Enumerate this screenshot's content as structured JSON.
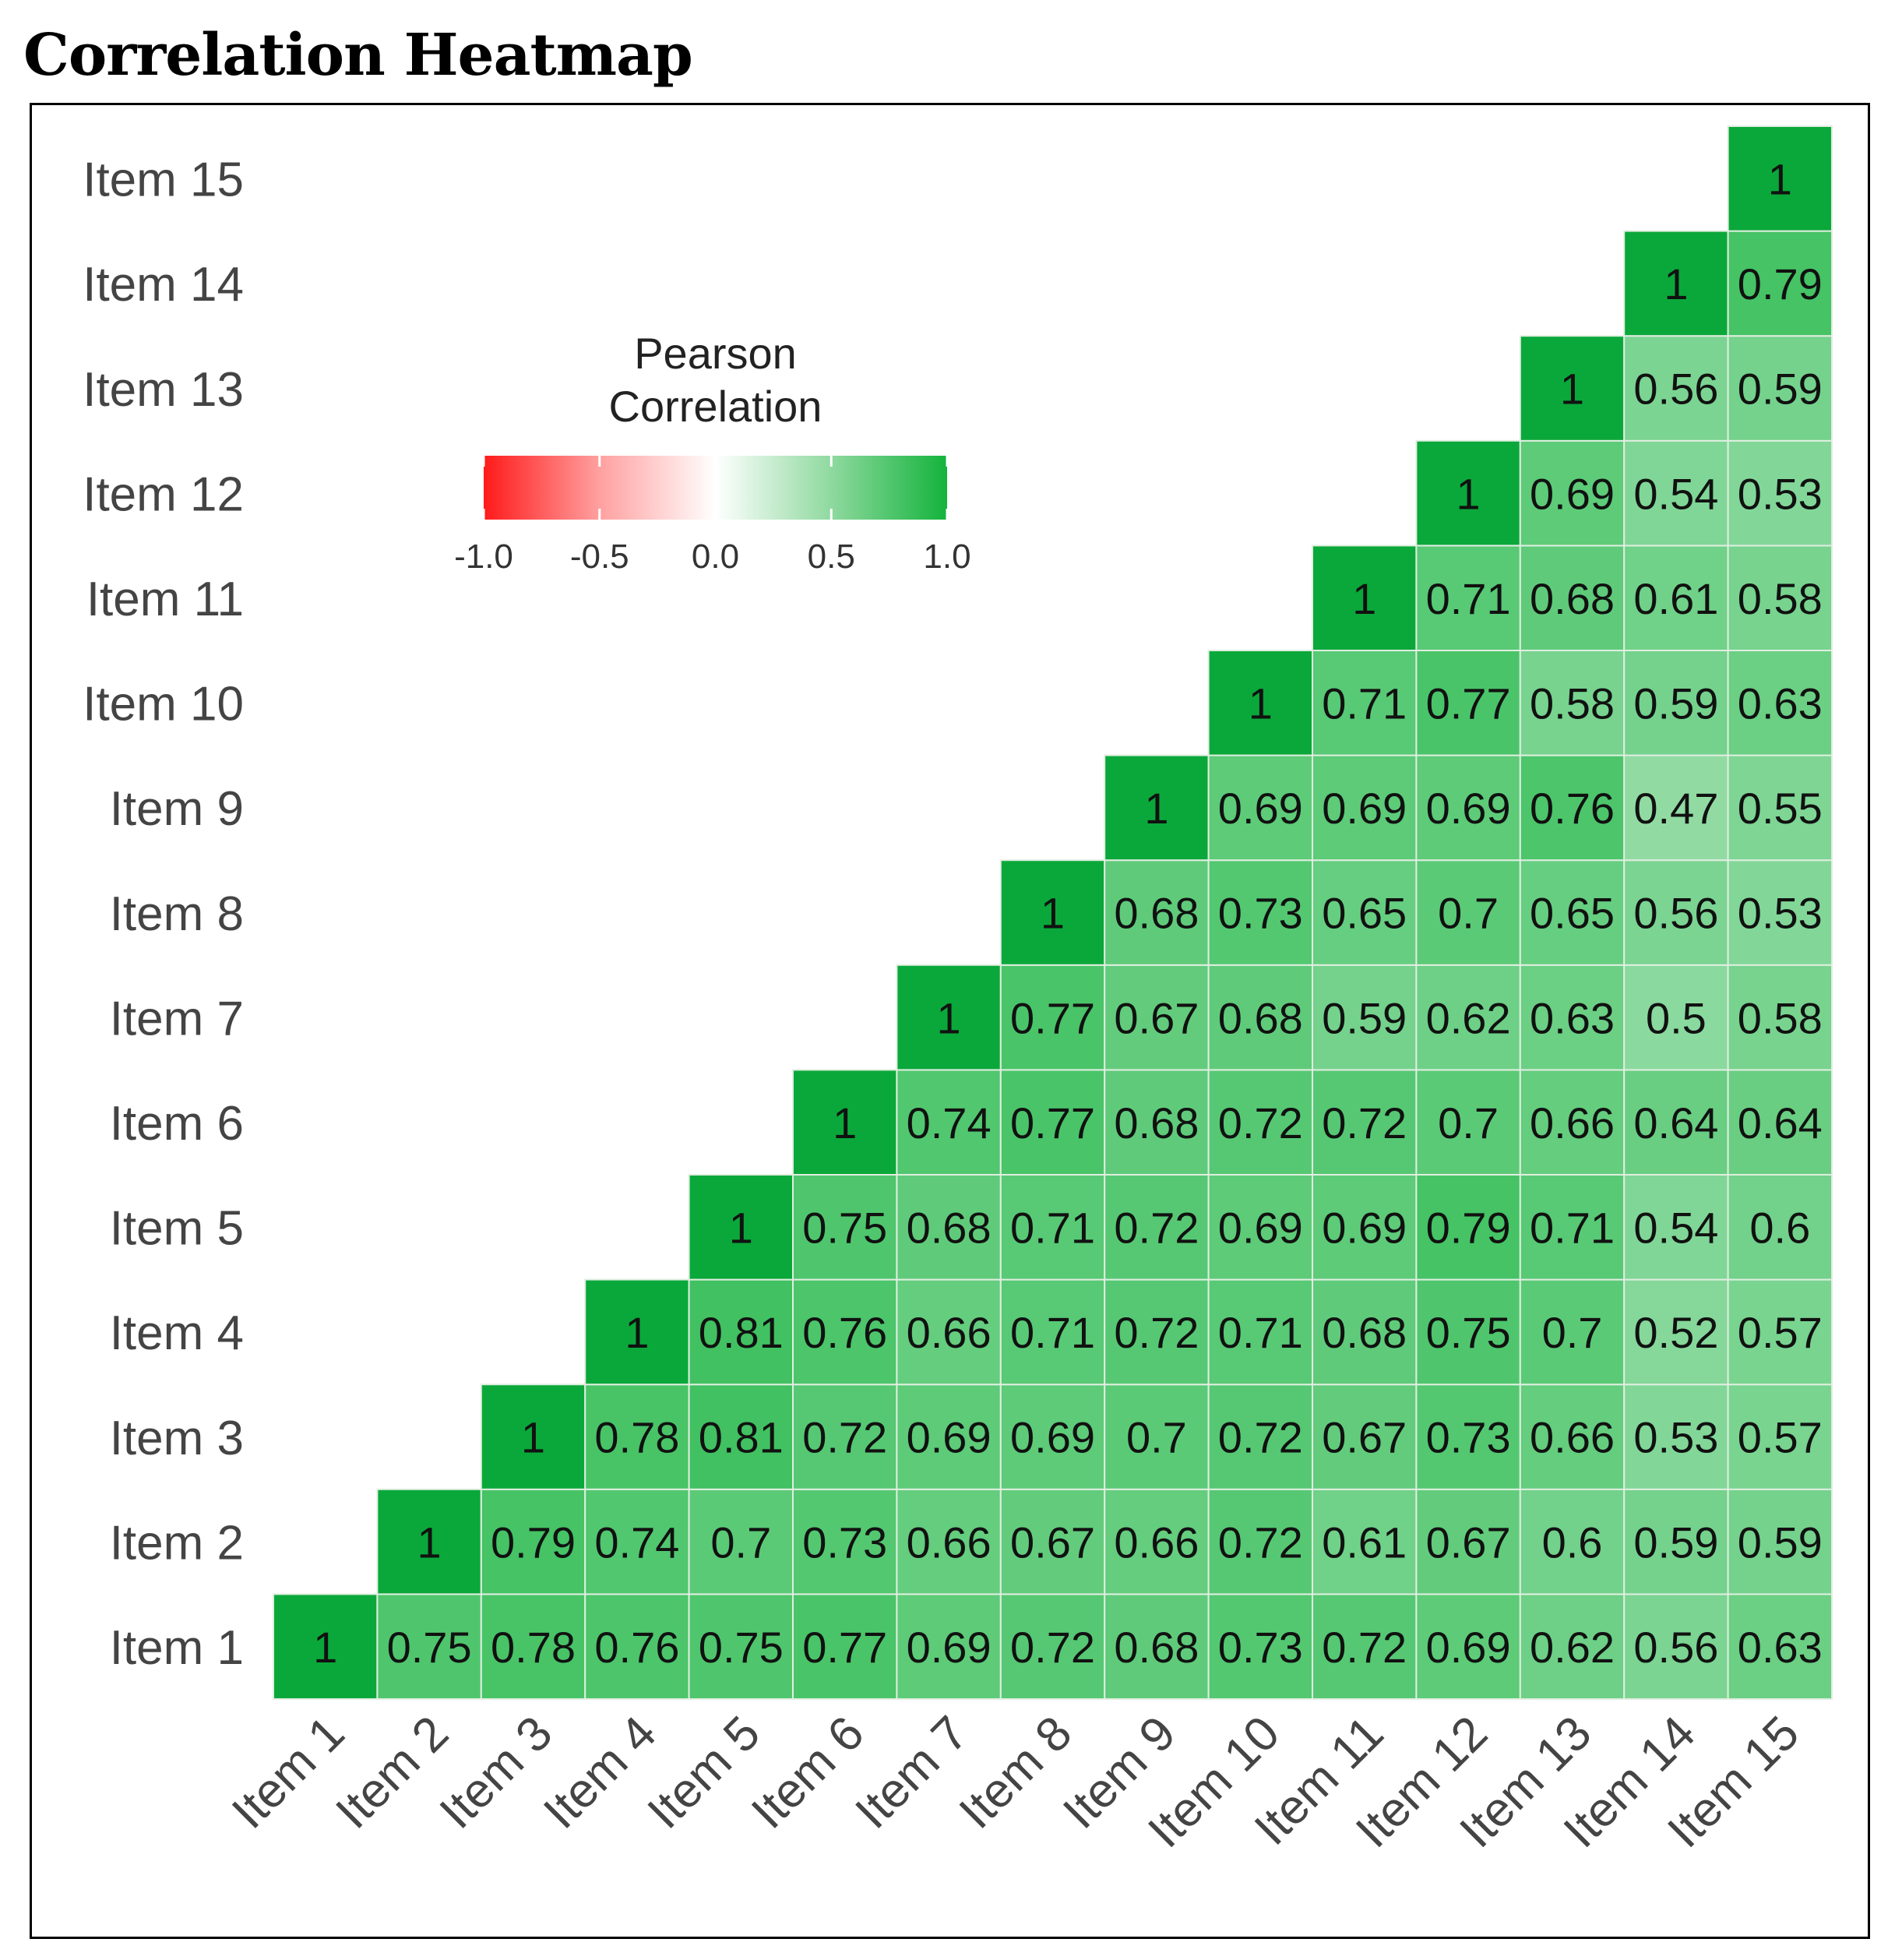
{
  "page": {
    "title": "Correlation Heatmap"
  },
  "chart_data": {
    "type": "heatmap",
    "title": "Correlation Heatmap",
    "legend_title": [
      "Pearson",
      "Correlation"
    ],
    "legend_ticks": [
      "-1.0",
      "-0.5",
      "0.0",
      "0.5",
      "1.0"
    ],
    "legend_range": [
      -1,
      1
    ],
    "legend_placement": "top-left",
    "colors": {
      "low": "#ff1a1a",
      "mid": "#ffffff",
      "high": "#14b33c",
      "diagonal": "#0aa83a",
      "cell_border": "#e0eee0"
    },
    "labels": [
      "Item 1",
      "Item 2",
      "Item 3",
      "Item 4",
      "Item 5",
      "Item 6",
      "Item 7",
      "Item 8",
      "Item 9",
      "Item 10",
      "Item 11",
      "Item 12",
      "Item 13",
      "Item 14",
      "Item 15"
    ],
    "rows": [
      {
        "label": "Item 1",
        "values": [
          "1",
          "0.75",
          "0.78",
          "0.76",
          "0.75",
          "0.77",
          "0.69",
          "0.72",
          "0.68",
          "0.73",
          "0.72",
          "0.69",
          "0.62",
          "0.56",
          "0.63"
        ]
      },
      {
        "label": "Item 2",
        "values": [
          "1",
          "0.79",
          "0.74",
          "0.7",
          "0.73",
          "0.66",
          "0.67",
          "0.66",
          "0.72",
          "0.61",
          "0.67",
          "0.6",
          "0.59",
          "0.59"
        ]
      },
      {
        "label": "Item 3",
        "values": [
          "1",
          "0.78",
          "0.81",
          "0.72",
          "0.69",
          "0.69",
          "0.7",
          "0.72",
          "0.67",
          "0.73",
          "0.66",
          "0.53",
          "0.57"
        ]
      },
      {
        "label": "Item 4",
        "values": [
          "1",
          "0.81",
          "0.76",
          "0.66",
          "0.71",
          "0.72",
          "0.71",
          "0.68",
          "0.75",
          "0.7",
          "0.52",
          "0.57"
        ]
      },
      {
        "label": "Item 5",
        "values": [
          "1",
          "0.75",
          "0.68",
          "0.71",
          "0.72",
          "0.69",
          "0.69",
          "0.79",
          "0.71",
          "0.54",
          "0.6"
        ]
      },
      {
        "label": "Item 6",
        "values": [
          "1",
          "0.74",
          "0.77",
          "0.68",
          "0.72",
          "0.72",
          "0.7",
          "0.66",
          "0.64",
          "0.64"
        ]
      },
      {
        "label": "Item 7",
        "values": [
          "1",
          "0.77",
          "0.67",
          "0.68",
          "0.59",
          "0.62",
          "0.63",
          "0.5",
          "0.58"
        ]
      },
      {
        "label": "Item 8",
        "values": [
          "1",
          "0.68",
          "0.73",
          "0.65",
          "0.7",
          "0.65",
          "0.56",
          "0.53"
        ]
      },
      {
        "label": "Item 9",
        "values": [
          "1",
          "0.69",
          "0.69",
          "0.69",
          "0.76",
          "0.47",
          "0.55"
        ]
      },
      {
        "label": "Item 10",
        "values": [
          "1",
          "0.71",
          "0.77",
          "0.58",
          "0.59",
          "0.63"
        ]
      },
      {
        "label": "Item 11",
        "values": [
          "1",
          "0.71",
          "0.68",
          "0.61",
          "0.58"
        ]
      },
      {
        "label": "Item 12",
        "values": [
          "1",
          "0.69",
          "0.54",
          "0.53"
        ]
      },
      {
        "label": "Item 13",
        "values": [
          "1",
          "0.56",
          "0.59"
        ]
      },
      {
        "label": "Item 14",
        "values": [
          "1",
          "0.79"
        ]
      },
      {
        "label": "Item 15",
        "values": [
          "1"
        ]
      }
    ]
  }
}
